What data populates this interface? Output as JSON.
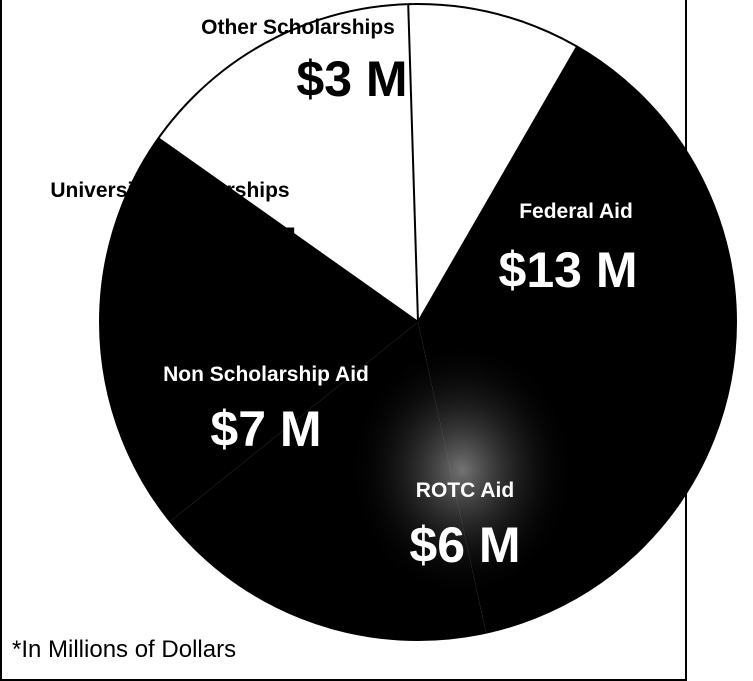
{
  "chart_data": {
    "type": "pie",
    "slices": [
      {
        "label": "Federal Aid",
        "value": 13,
        "value_label": "$13 M",
        "color": "#000000",
        "label_color": "#ffffff"
      },
      {
        "label": "ROTC Aid",
        "value": 6,
        "value_label": "$6 M",
        "color": "#000000",
        "label_color": "#ffffff"
      },
      {
        "label": "Non Scholarship Aid",
        "value": 7,
        "value_label": "$7 M",
        "color": "#000000",
        "label_color": "#ffffff"
      },
      {
        "label": "University Scholarships",
        "value": 5,
        "value_label": "$5 M",
        "color": "#ffffff",
        "label_color": "#000000"
      },
      {
        "label": "Other Scholarships",
        "value": 3,
        "value_label": "$3 M",
        "color": "#ffffff",
        "label_color": "#000000"
      }
    ],
    "footnote": "*In Millions of Dollars"
  }
}
